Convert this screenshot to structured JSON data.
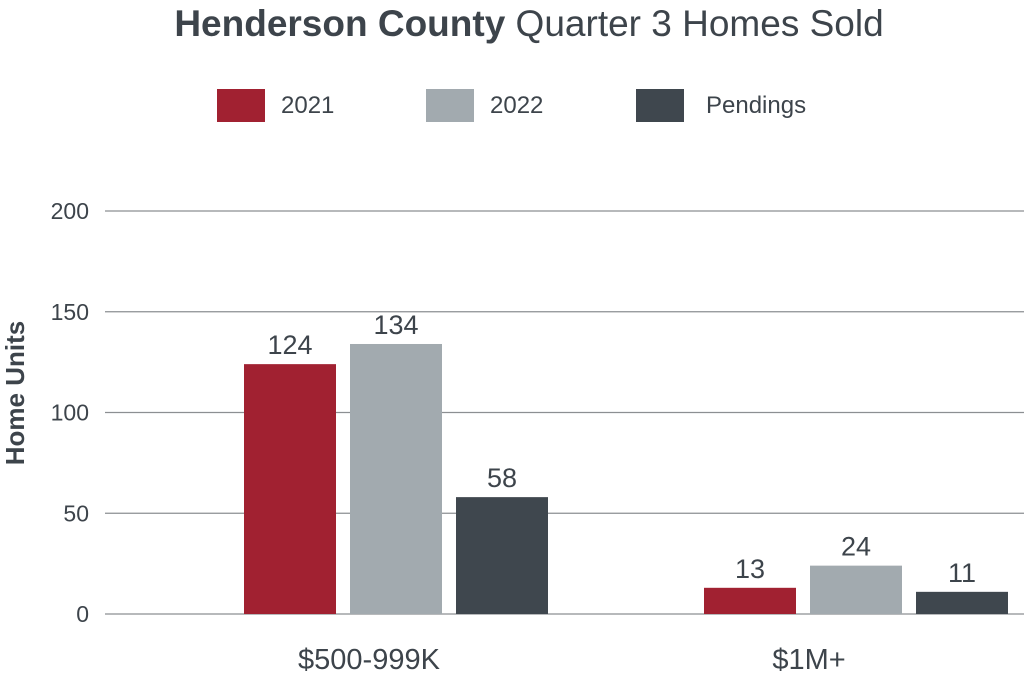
{
  "chart_data": {
    "type": "bar",
    "title_bold": "Henderson County",
    "title_rest": " Quarter 3 Homes Sold",
    "xlabel": "",
    "ylabel": "Home Units",
    "ylim": [
      0,
      200
    ],
    "yticks": [
      0,
      50,
      100,
      150,
      200
    ],
    "grid": true,
    "legend_position": "top",
    "categories": [
      "$500-999K",
      "$1M+"
    ],
    "series": [
      {
        "name": "2021",
        "color": "#a12131",
        "values": [
          124,
          13
        ]
      },
      {
        "name": "2022",
        "color": "#a2aaaf",
        "values": [
          134,
          24
        ]
      },
      {
        "name": "Pendings",
        "color": "#3f474e",
        "values": [
          58,
          11
        ]
      }
    ]
  }
}
